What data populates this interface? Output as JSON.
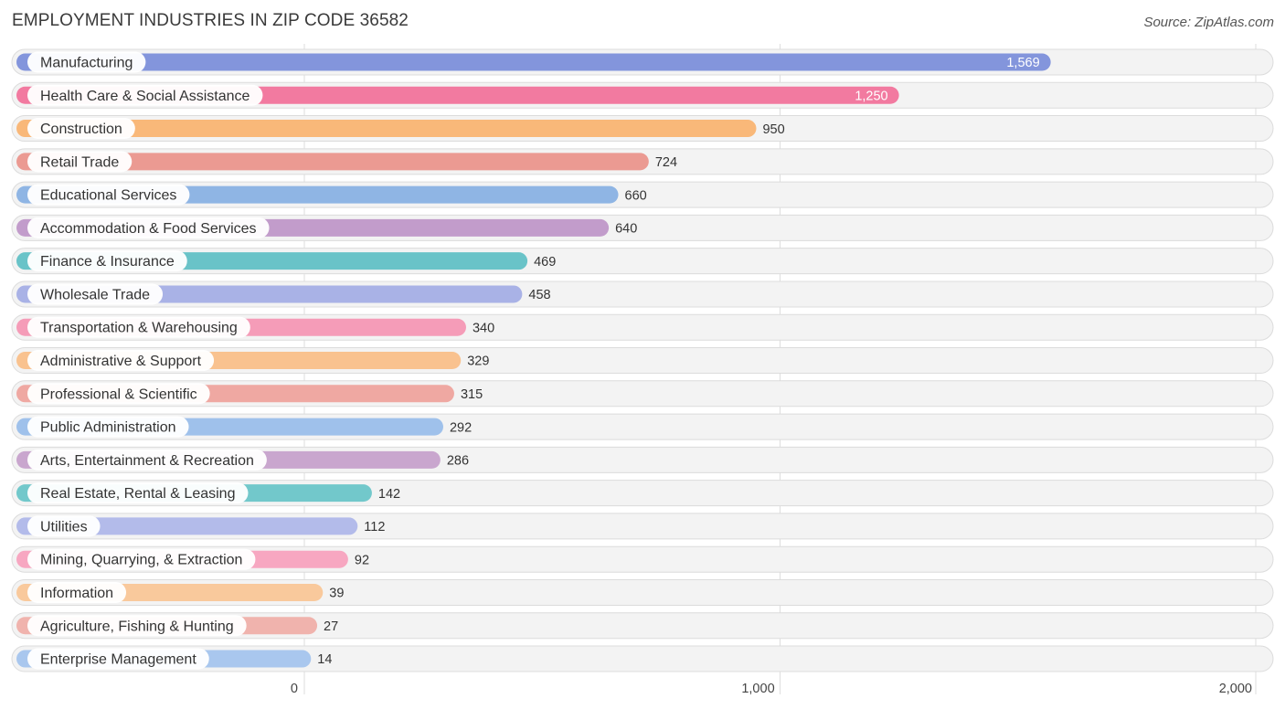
{
  "chart_data": {
    "type": "bar",
    "orientation": "horizontal",
    "title": "EMPLOYMENT INDUSTRIES IN ZIP CODE 36582",
    "source": "Source: ZipAtlas.com",
    "xlim": [
      0,
      2000
    ],
    "ticks": [
      {
        "value": 0,
        "label": "0"
      },
      {
        "value": 1000,
        "label": "1,000"
      },
      {
        "value": 2000,
        "label": "2,000"
      }
    ],
    "grid": true,
    "categories": [
      "Manufacturing",
      "Health Care & Social Assistance",
      "Construction",
      "Retail Trade",
      "Educational Services",
      "Accommodation & Food Services",
      "Finance & Insurance",
      "Wholesale Trade",
      "Transportation & Warehousing",
      "Administrative & Support",
      "Professional & Scientific",
      "Public Administration",
      "Arts, Entertainment & Recreation",
      "Real Estate, Rental & Leasing",
      "Utilities",
      "Mining, Quarrying, & Extraction",
      "Information",
      "Agriculture, Fishing & Hunting",
      "Enterprise Management"
    ],
    "values": [
      1569,
      1250,
      950,
      724,
      660,
      640,
      469,
      458,
      340,
      329,
      315,
      292,
      286,
      142,
      112,
      92,
      39,
      27,
      14
    ],
    "value_labels": [
      "1,569",
      "1,250",
      "950",
      "724",
      "660",
      "640",
      "469",
      "458",
      "340",
      "329",
      "315",
      "292",
      "286",
      "142",
      "112",
      "92",
      "39",
      "27",
      "14"
    ],
    "colors": [
      "#8395dc",
      "#f27aa0",
      "#f9b879",
      "#eb9a92",
      "#8fb5e4",
      "#c29ccb",
      "#69c3c8",
      "#a9b2e6",
      "#f59cb8",
      "#f9c28f",
      "#efa8a2",
      "#9fc1eb",
      "#c9a6ce",
      "#72c8cb",
      "#b3bbea",
      "#f7a7c1",
      "#f9c99c",
      "#f0b3ad",
      "#a9c7ee"
    ]
  }
}
